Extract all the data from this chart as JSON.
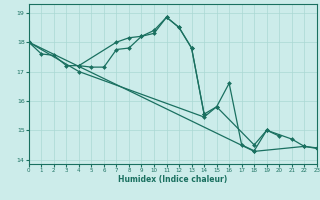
{
  "xlabel": "Humidex (Indice chaleur)",
  "xlim": [
    0,
    23
  ],
  "ylim": [
    13.85,
    19.3
  ],
  "yticks": [
    14,
    15,
    16,
    17,
    18,
    19
  ],
  "xticks": [
    0,
    1,
    2,
    3,
    4,
    5,
    6,
    7,
    8,
    9,
    10,
    11,
    12,
    13,
    14,
    15,
    16,
    17,
    18,
    19,
    20,
    21,
    22,
    23
  ],
  "bg_color": "#ccecea",
  "grid_color": "#aad8d4",
  "line_color": "#1a7060",
  "line1_x": [
    0,
    1,
    2,
    3,
    4,
    7,
    8,
    9,
    10,
    11,
    12,
    13,
    14
  ],
  "line1_y": [
    18.0,
    17.6,
    17.55,
    17.2,
    17.2,
    18.0,
    18.15,
    18.2,
    18.3,
    18.85,
    18.5,
    17.8,
    15.55
  ],
  "line2_x": [
    4,
    5,
    6,
    7,
    8,
    9,
    10,
    11,
    12,
    13,
    14,
    15,
    16,
    17,
    18,
    19,
    20
  ],
  "line2_y": [
    17.2,
    17.15,
    17.15,
    17.75,
    17.8,
    18.2,
    18.4,
    18.85,
    18.5,
    17.8,
    15.55,
    15.8,
    16.6,
    14.5,
    14.3,
    15.0,
    14.8
  ],
  "line3_x": [
    0,
    4,
    14,
    15,
    18,
    19,
    21,
    22,
    23
  ],
  "line3_y": [
    18.0,
    17.0,
    15.45,
    15.8,
    14.5,
    15.0,
    14.7,
    14.45,
    14.4
  ],
  "line4_x": [
    0,
    18,
    22,
    23
  ],
  "line4_y": [
    18.0,
    14.28,
    14.45,
    14.38
  ]
}
